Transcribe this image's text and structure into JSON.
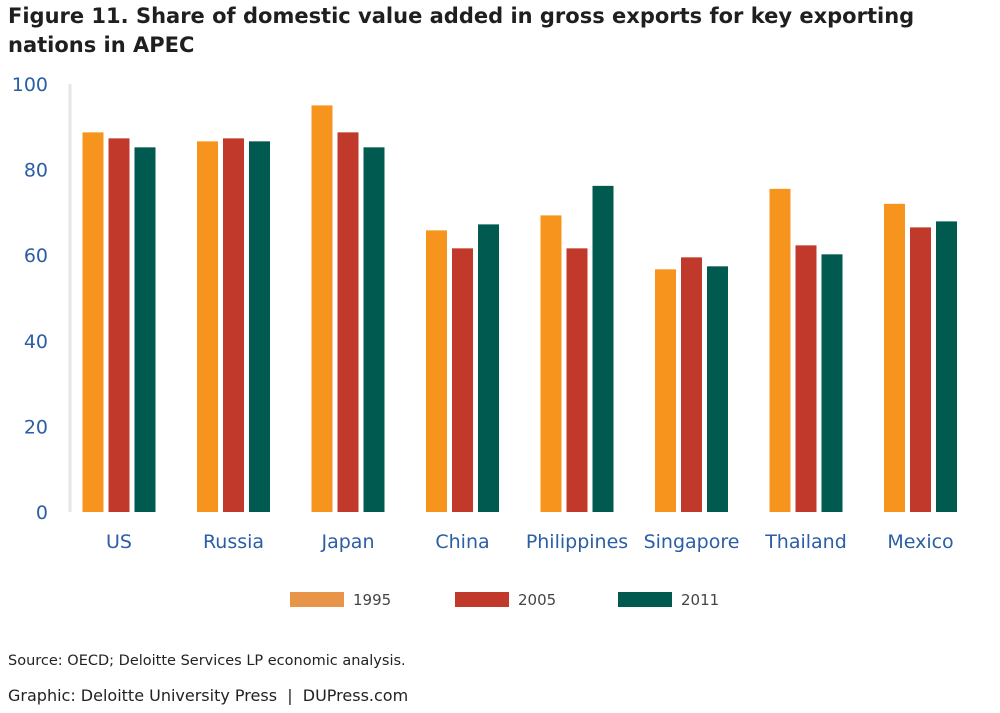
{
  "title": "Figure 11. Share of domestic value added in gross exports for key exporting nations in APEC",
  "chart_data": {
    "type": "bar",
    "categories": [
      "US",
      "Russia",
      "Japan",
      "China",
      "Philippines",
      "Singapore",
      "Thailand",
      "Mexico"
    ],
    "series": [
      {
        "name": "1995",
        "color": "#f7941d",
        "values": [
          88.7,
          86.6,
          95.0,
          65.8,
          69.3,
          56.7,
          75.5,
          72.0
        ]
      },
      {
        "name": "2005",
        "color": "#c0392b",
        "values": [
          87.3,
          87.3,
          88.7,
          61.6,
          61.6,
          59.5,
          62.3,
          66.5
        ]
      },
      {
        "name": "2011",
        "color": "#005a4f",
        "values": [
          85.2,
          86.6,
          85.2,
          67.2,
          76.2,
          57.4,
          60.2,
          67.9
        ]
      }
    ],
    "ylim": [
      0,
      100
    ],
    "yticks": [
      0,
      20,
      40,
      60,
      80,
      100
    ],
    "xlabel": "",
    "ylabel": "",
    "grid": false,
    "legend_position": "bottom"
  },
  "footer": {
    "source": "Source: OECD; Deloitte Services LP economic analysis.",
    "credit": "Graphic: Deloitte University Press  |  DUPress.com"
  }
}
